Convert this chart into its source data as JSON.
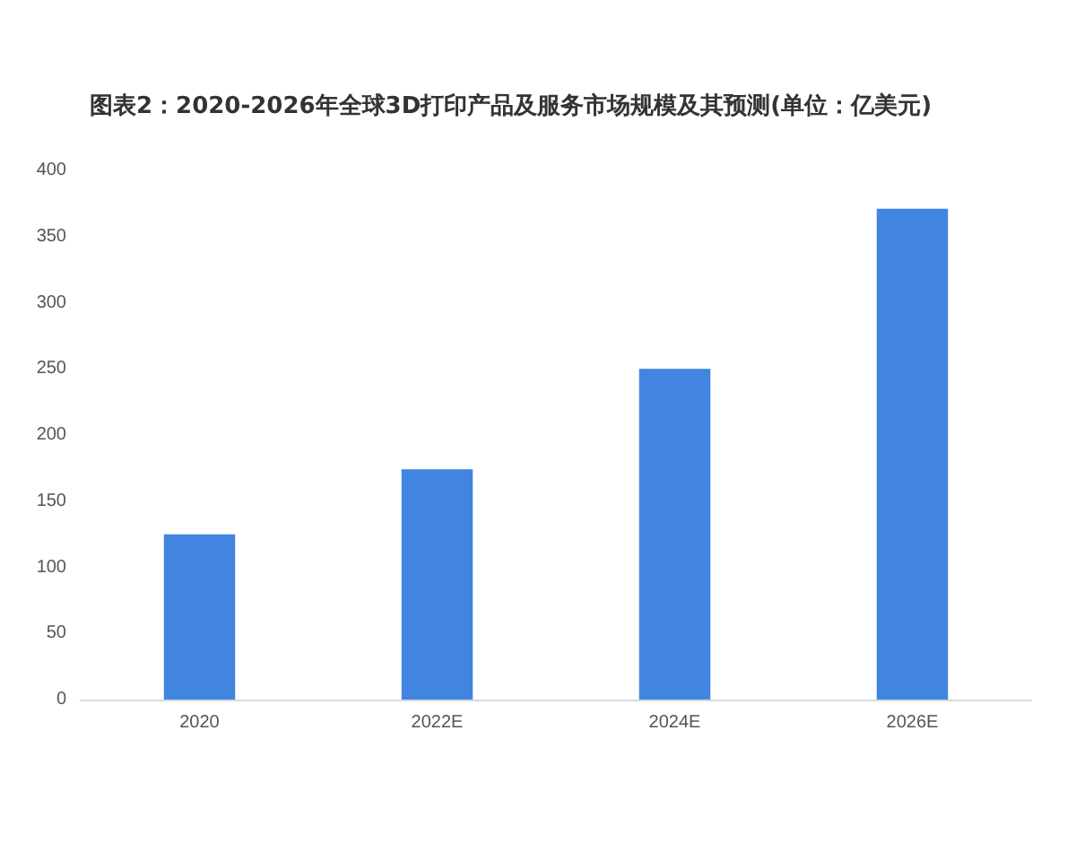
{
  "chart_data": {
    "type": "bar",
    "title": "图表2：2020-2026年全球3D打印产品及服务市场规模及其预测(单位：亿美元)",
    "categories": [
      "2020",
      "2022E",
      "2024E",
      "2026E"
    ],
    "values": [
      125,
      174,
      250,
      371
    ],
    "color": "#4285e0",
    "ylim": [
      0,
      400
    ],
    "yticks": [
      0,
      50,
      100,
      150,
      200,
      250,
      300,
      350,
      400
    ],
    "grid": false
  }
}
